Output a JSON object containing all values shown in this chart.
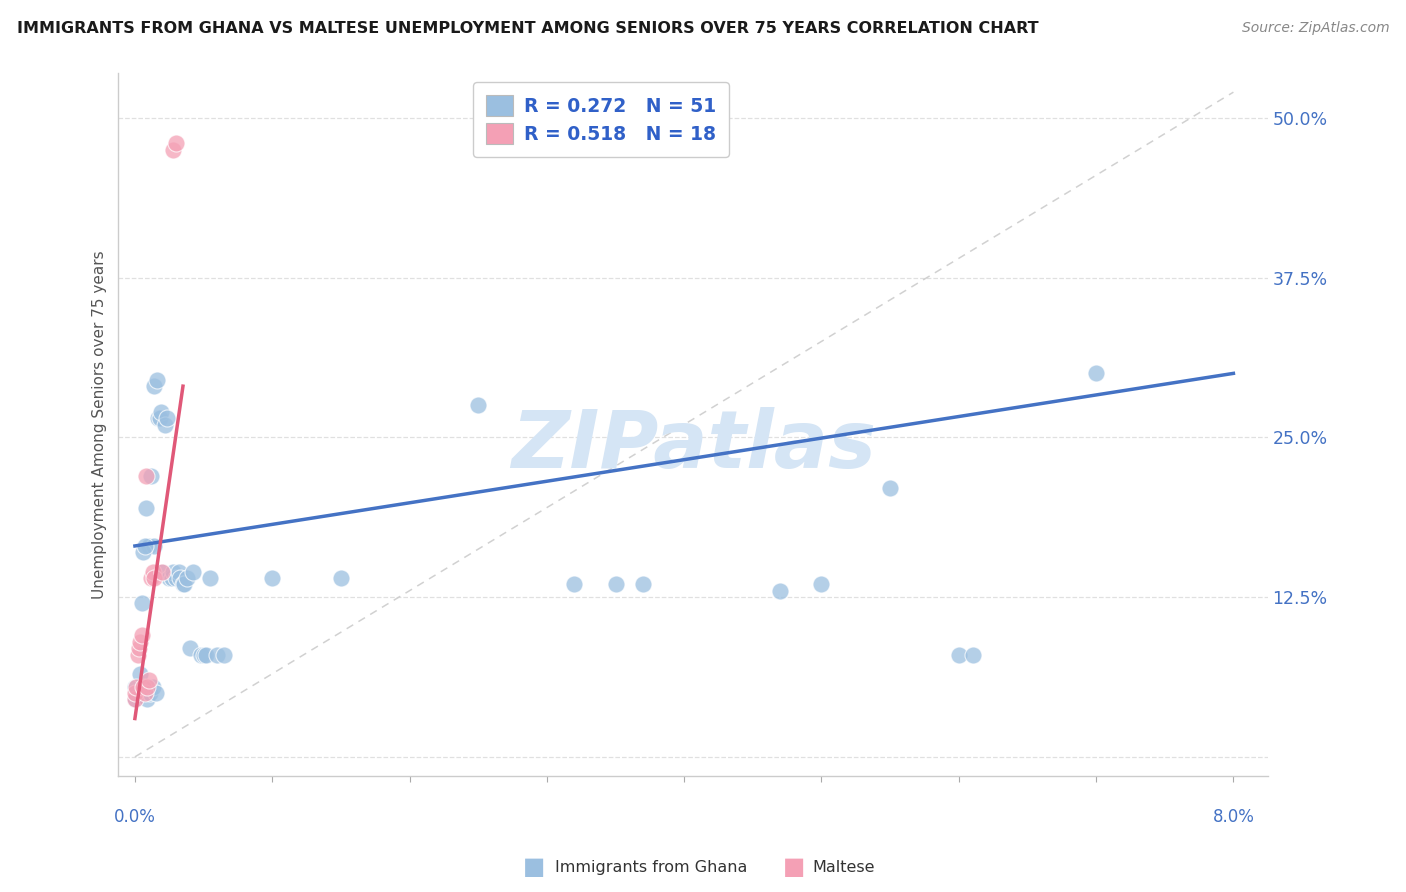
{
  "title": "IMMIGRANTS FROM GHANA VS MALTESE UNEMPLOYMENT AMONG SENIORS OVER 75 YEARS CORRELATION CHART",
  "source": "Source: ZipAtlas.com",
  "ylabel": "Unemployment Among Seniors over 75 years",
  "xlim": [
    0.0,
    8.0
  ],
  "ylim": [
    0.0,
    52.0
  ],
  "ghana_color": "#9bbfe0",
  "maltese_color": "#f4a0b5",
  "ghana_R": 0.272,
  "ghana_N": 51,
  "maltese_R": 0.518,
  "maltese_N": 18,
  "ghana_points": [
    [
      0.0,
      4.5
    ],
    [
      0.0,
      5.5
    ],
    [
      0.04,
      6.5
    ],
    [
      0.05,
      12.0
    ],
    [
      0.08,
      19.5
    ],
    [
      0.1,
      16.5
    ],
    [
      0.12,
      22.0
    ],
    [
      0.14,
      29.0
    ],
    [
      0.14,
      16.5
    ],
    [
      0.16,
      29.5
    ],
    [
      0.17,
      26.5
    ],
    [
      0.18,
      26.5
    ],
    [
      0.19,
      27.0
    ],
    [
      0.2,
      14.5
    ],
    [
      0.22,
      26.0
    ],
    [
      0.23,
      26.5
    ],
    [
      0.25,
      14.0
    ],
    [
      0.27,
      14.0
    ],
    [
      0.28,
      14.5
    ],
    [
      0.3,
      14.0
    ],
    [
      0.32,
      14.5
    ],
    [
      0.33,
      14.0
    ],
    [
      0.35,
      13.5
    ],
    [
      0.36,
      13.5
    ],
    [
      0.38,
      14.0
    ],
    [
      0.4,
      8.5
    ],
    [
      0.42,
      14.5
    ],
    [
      0.48,
      8.0
    ],
    [
      0.5,
      8.0
    ],
    [
      0.52,
      8.0
    ],
    [
      0.55,
      14.0
    ],
    [
      0.6,
      8.0
    ],
    [
      0.65,
      8.0
    ],
    [
      1.0,
      14.0
    ],
    [
      1.5,
      14.0
    ],
    [
      2.5,
      27.5
    ],
    [
      3.2,
      13.5
    ],
    [
      3.5,
      13.5
    ],
    [
      3.7,
      13.5
    ],
    [
      4.7,
      13.0
    ],
    [
      5.0,
      13.5
    ],
    [
      5.5,
      21.0
    ],
    [
      6.0,
      8.0
    ],
    [
      6.1,
      8.0
    ],
    [
      7.0,
      30.0
    ],
    [
      0.06,
      16.0
    ],
    [
      0.07,
      16.5
    ],
    [
      0.09,
      4.5
    ],
    [
      0.11,
      5.0
    ],
    [
      0.13,
      5.5
    ],
    [
      0.15,
      5.0
    ]
  ],
  "maltese_points": [
    [
      0.0,
      4.5
    ],
    [
      0.0,
      5.0
    ],
    [
      0.01,
      5.5
    ],
    [
      0.02,
      8.0
    ],
    [
      0.03,
      8.5
    ],
    [
      0.04,
      9.0
    ],
    [
      0.05,
      9.5
    ],
    [
      0.06,
      5.5
    ],
    [
      0.07,
      5.0
    ],
    [
      0.08,
      22.0
    ],
    [
      0.09,
      5.5
    ],
    [
      0.1,
      6.0
    ],
    [
      0.12,
      14.0
    ],
    [
      0.13,
      14.5
    ],
    [
      0.14,
      14.0
    ],
    [
      0.2,
      14.5
    ],
    [
      0.28,
      47.5
    ],
    [
      0.3,
      48.0
    ]
  ],
  "ghana_line_color": "#4472c4",
  "maltese_line_color": "#e05878",
  "ref_line_color": "#cccccc",
  "watermark": "ZIPatlas",
  "watermark_color": "#d5e5f5",
  "legend_R_N_color": "#3060c8",
  "background_color": "#ffffff",
  "ghana_line_x0": 0.0,
  "ghana_line_y0": 16.5,
  "ghana_line_x1": 8.0,
  "ghana_line_y1": 30.0,
  "maltese_line_x0": 0.0,
  "maltese_line_y0": 3.0,
  "maltese_line_x1": 0.35,
  "maltese_line_y1": 29.0
}
